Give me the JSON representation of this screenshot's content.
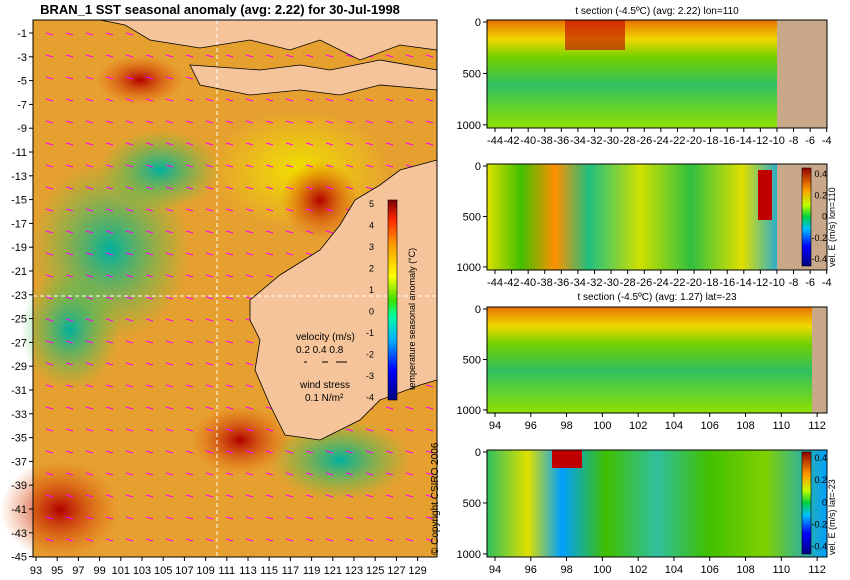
{
  "map": {
    "title": "BRAN_1  SST seasonal anomaly  (avg: 2.22)  for 30-Jul-1998",
    "x_ticks": [
      "93",
      "95",
      "97",
      "99",
      "101",
      "103",
      "105",
      "107",
      "109",
      "111",
      "113",
      "115",
      "117",
      "119",
      "121",
      "123",
      "125",
      "127",
      "129"
    ],
    "y_ticks": [
      "-1",
      "-3",
      "-5",
      "-7",
      "-9",
      "-11",
      "-13",
      "-15",
      "-17",
      "-19",
      "-21",
      "-23",
      "-25",
      "-27",
      "-29",
      "-31",
      "-33",
      "-35",
      "-37",
      "-39",
      "-41",
      "-43",
      "-45"
    ],
    "colorbar": {
      "label": "temperature seasonal anomaly (°C)",
      "ticks": [
        "5",
        "4",
        "3",
        "2",
        "1",
        "0",
        "-1",
        "-2",
        "-3",
        "-4"
      ]
    },
    "legend": {
      "velocity_label": "velocity (m/s)",
      "velocity_values": "0.2 0.4 0.8",
      "wind_label": "wind stress",
      "wind_value": "0.1 N/m²"
    },
    "copyright": "© Copyright CSIRO 2006"
  },
  "chart_data": [
    {
      "type": "heatmap",
      "title": "BRAN_1  SST seasonal anomaly  (avg: 2.22)  for 30-Jul-1998",
      "x": [
        93,
        95,
        97,
        99,
        101,
        103,
        105,
        107,
        109,
        111,
        113,
        115,
        117,
        119,
        121,
        123,
        125,
        127,
        129
      ],
      "y": [
        -1,
        -3,
        -5,
        -7,
        -9,
        -11,
        -13,
        -15,
        -17,
        -19,
        -21,
        -23,
        -25,
        -27,
        -29,
        -31,
        -33,
        -35,
        -37,
        -39,
        -41,
        -43,
        -45
      ],
      "xlim": [
        93,
        130
      ],
      "ylim": [
        -45,
        0
      ],
      "colorbar_range": [
        -4,
        5
      ],
      "colorbar_label": "temperature seasonal anomaly (°C)"
    },
    {
      "type": "heatmap",
      "title": "t section (-4.5ºC)  (avg: 2.22) lon=110",
      "x_ticks": [
        "-44",
        "-42",
        "-40",
        "-38",
        "-36",
        "-34",
        "-32",
        "-30",
        "-28",
        "-26",
        "-24",
        "-22",
        "-20",
        "-18",
        "-16",
        "-14",
        "-12",
        "-10",
        "-8",
        "-6",
        "-4"
      ],
      "y_ticks": [
        "0",
        "500",
        "1000"
      ],
      "xlim": [
        -45,
        -3
      ],
      "ylim": [
        1050,
        0
      ]
    },
    {
      "type": "heatmap",
      "title": "",
      "x_ticks": [
        "-44",
        "-42",
        "-40",
        "-38",
        "-36",
        "-34",
        "-32",
        "-30",
        "-28",
        "-26",
        "-24",
        "-22",
        "-20",
        "-18",
        "-16",
        "-14",
        "-12",
        "-10",
        "-8",
        "-6",
        "-4"
      ],
      "y_ticks": [
        "0",
        "500",
        "1000"
      ],
      "colorbar_ticks": [
        "0.4",
        "0.2",
        "0",
        "-0.2",
        "-0.4"
      ],
      "colorbar_label": "vel. E (m/s) lon=110",
      "colorbar_range": [
        -0.5,
        0.5
      ]
    },
    {
      "type": "heatmap",
      "title": "t section (-4.5ºC)  (avg: 1.27) lat=-23",
      "x_ticks": [
        "94",
        "96",
        "98",
        "100",
        "102",
        "104",
        "106",
        "108",
        "110",
        "112"
      ],
      "y_ticks": [
        "0",
        "500",
        "1000"
      ],
      "xlim": [
        93,
        114
      ],
      "ylim": [
        1050,
        0
      ]
    },
    {
      "type": "heatmap",
      "title": "",
      "x_ticks": [
        "94",
        "96",
        "98",
        "100",
        "102",
        "104",
        "106",
        "108",
        "110",
        "112"
      ],
      "y_ticks": [
        "0",
        "500",
        "1000"
      ],
      "colorbar_ticks": [
        "0.4",
        "0.2",
        "0",
        "-0.2",
        "-0.4"
      ],
      "colorbar_label": "vel. E (m/s) lat=-23",
      "colorbar_range": [
        -0.5,
        0.5
      ]
    }
  ],
  "panels": {
    "p1": {
      "title": "t section (-4.5ºC)  (avg: 2.22) lon=110",
      "x_ticks": [
        "-44",
        "-42",
        "-40",
        "-38",
        "-36",
        "-34",
        "-32",
        "-30",
        "-28",
        "-26",
        "-24",
        "-22",
        "-20",
        "-18",
        "-16",
        "-14",
        "-12",
        "-10",
        "-8",
        "-6",
        "-4"
      ],
      "y_ticks": [
        "0",
        "500",
        "1000"
      ]
    },
    "p2": {
      "x_ticks": [
        "-44",
        "-42",
        "-40",
        "-38",
        "-36",
        "-34",
        "-32",
        "-30",
        "-28",
        "-26",
        "-24",
        "-22",
        "-20",
        "-18",
        "-16",
        "-14",
        "-12",
        "-10",
        "-8",
        "-6",
        "-4"
      ],
      "y_ticks": [
        "0",
        "500",
        "1000"
      ],
      "cb_ticks": [
        "0.4",
        "0.2",
        "0",
        "-0.2",
        "-0.4"
      ],
      "cb_label": "vel. E (m/s) lon=110"
    },
    "p3": {
      "title": "t section (-4.5ºC)  (avg: 1.27) lat=-23",
      "x_ticks": [
        "94",
        "96",
        "98",
        "100",
        "102",
        "104",
        "106",
        "108",
        "110",
        "112"
      ],
      "y_ticks": [
        "0",
        "500",
        "1000"
      ]
    },
    "p4": {
      "x_ticks": [
        "94",
        "96",
        "98",
        "100",
        "102",
        "104",
        "106",
        "108",
        "110",
        "112"
      ],
      "y_ticks": [
        "0",
        "500",
        "1000"
      ],
      "cb_ticks": [
        "0.4",
        "0.2",
        "0",
        "-0.2",
        "-0.4"
      ],
      "cb_label": "vel. E (m/s) lat=-23"
    }
  },
  "colors": {
    "land": "#f5c49a",
    "section_land": "#c8a888",
    "grid_line": "#ffffff",
    "vector": "#ff00ff"
  }
}
